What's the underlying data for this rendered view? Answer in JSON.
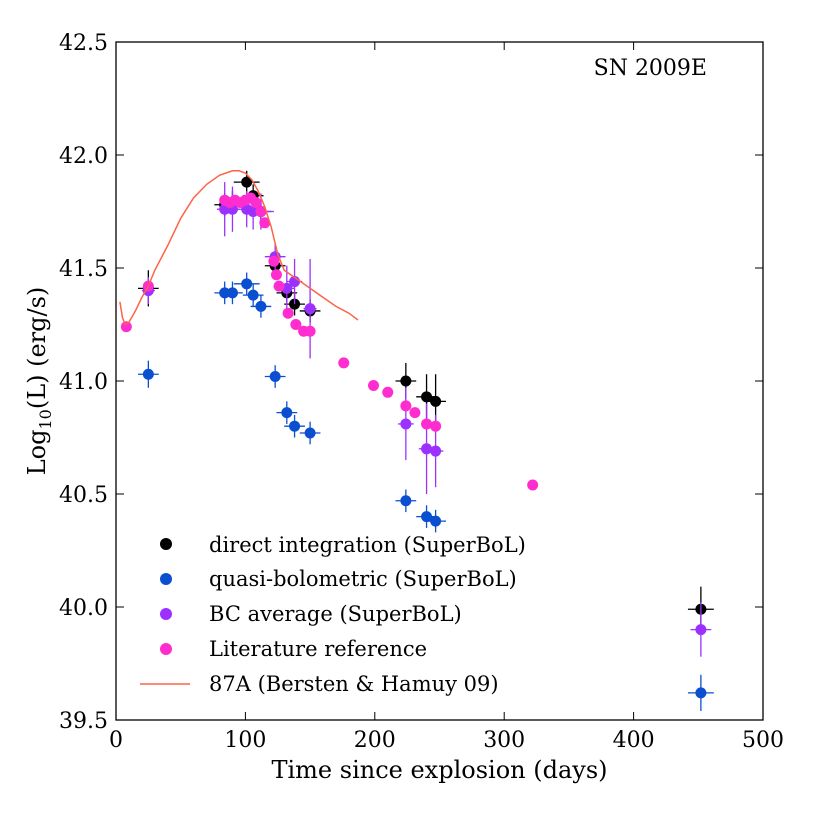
{
  "chart_data": {
    "type": "scatter",
    "title": "",
    "annotation": "SN 2009E",
    "xlabel": "Time since explosion (days)",
    "ylabel_main": "Log",
    "ylabel_sub": "10",
    "ylabel_rest": "(L) (erg/s)",
    "xlim": [
      0,
      500
    ],
    "ylim": [
      39.5,
      42.5
    ],
    "x_ticks": [
      0,
      100,
      200,
      300,
      400,
      500
    ],
    "y_ticks": [
      39.5,
      40.0,
      40.5,
      41.0,
      41.5,
      42.0,
      42.5
    ],
    "x_tick_labels": [
      "0",
      "100",
      "200",
      "300",
      "400",
      "500"
    ],
    "y_tick_labels": [
      "39.5",
      "40.0",
      "40.5",
      "41.0",
      "41.5",
      "42.0",
      "42.5"
    ],
    "grid": false,
    "legend_position": "bottom-left",
    "series": [
      {
        "name": "direct integration (SuperBoL)",
        "color": "#000000",
        "marker": "circle",
        "points": [
          {
            "x": 25,
            "y": 41.41,
            "xerr": 8,
            "yerr": 0.08
          },
          {
            "x": 84,
            "y": 41.78,
            "xerr": 8,
            "yerr": 0.05
          },
          {
            "x": 90,
            "y": 41.79,
            "xerr": 8,
            "yerr": 0.05
          },
          {
            "x": 101,
            "y": 41.88,
            "xerr": 10,
            "yerr": 0.05
          },
          {
            "x": 106,
            "y": 41.82,
            "xerr": 8,
            "yerr": 0.05
          },
          {
            "x": 112,
            "y": 41.75,
            "xerr": 8,
            "yerr": 0.05
          },
          {
            "x": 123,
            "y": 41.51,
            "xerr": 8,
            "yerr": 0.04
          },
          {
            "x": 132,
            "y": 41.39,
            "xerr": 8,
            "yerr": 0.04
          },
          {
            "x": 138,
            "y": 41.34,
            "xerr": 8,
            "yerr": 0.05
          },
          {
            "x": 150,
            "y": 41.31,
            "xerr": 8,
            "yerr": 0.05
          },
          {
            "x": 224,
            "y": 41.0,
            "xerr": 8,
            "yerr": 0.08
          },
          {
            "x": 240,
            "y": 40.93,
            "xerr": 8,
            "yerr": 0.1
          },
          {
            "x": 247,
            "y": 40.91,
            "xerr": 8,
            "yerr": 0.12
          },
          {
            "x": 452,
            "y": 39.99,
            "xerr": 10,
            "yerr": 0.1
          }
        ]
      },
      {
        "name": "quasi-bolometric (SuperBoL)",
        "color": "#0b4fd1",
        "marker": "circle",
        "points": [
          {
            "x": 25,
            "y": 41.03,
            "xerr": 8,
            "yerr": 0.06
          },
          {
            "x": 84,
            "y": 41.39,
            "xerr": 8,
            "yerr": 0.05
          },
          {
            "x": 90,
            "y": 41.39,
            "xerr": 8,
            "yerr": 0.05
          },
          {
            "x": 101,
            "y": 41.43,
            "xerr": 10,
            "yerr": 0.05
          },
          {
            "x": 106,
            "y": 41.38,
            "xerr": 8,
            "yerr": 0.05
          },
          {
            "x": 112,
            "y": 41.33,
            "xerr": 8,
            "yerr": 0.05
          },
          {
            "x": 123,
            "y": 41.02,
            "xerr": 8,
            "yerr": 0.05
          },
          {
            "x": 132,
            "y": 40.86,
            "xerr": 8,
            "yerr": 0.05
          },
          {
            "x": 138,
            "y": 40.8,
            "xerr": 8,
            "yerr": 0.05
          },
          {
            "x": 150,
            "y": 40.77,
            "xerr": 8,
            "yerr": 0.05
          },
          {
            "x": 224,
            "y": 40.47,
            "xerr": 8,
            "yerr": 0.05
          },
          {
            "x": 240,
            "y": 40.4,
            "xerr": 8,
            "yerr": 0.05
          },
          {
            "x": 247,
            "y": 40.38,
            "xerr": 8,
            "yerr": 0.05
          },
          {
            "x": 452,
            "y": 39.62,
            "xerr": 10,
            "yerr": 0.08
          }
        ]
      },
      {
        "name": "BC average (SuperBoL)",
        "color": "#9b30ff",
        "marker": "circle",
        "points": [
          {
            "x": 25,
            "y": 41.4,
            "xerr": 5,
            "yerr": 0.06
          },
          {
            "x": 84,
            "y": 41.76,
            "xerr": 6,
            "yerr": 0.12
          },
          {
            "x": 90,
            "y": 41.76,
            "xerr": 6,
            "yerr": 0.1
          },
          {
            "x": 101,
            "y": 41.76,
            "xerr": 8,
            "yerr": 0.08
          },
          {
            "x": 106,
            "y": 41.75,
            "xerr": 6,
            "yerr": 0.08
          },
          {
            "x": 112,
            "y": 41.75,
            "xerr": 10,
            "yerr": 0.08
          },
          {
            "x": 123,
            "y": 41.55,
            "xerr": 8,
            "yerr": 0.06
          },
          {
            "x": 132,
            "y": 41.41,
            "xerr": 6,
            "yerr": 0.1
          },
          {
            "x": 138,
            "y": 41.44,
            "xerr": 6,
            "yerr": 0.1
          },
          {
            "x": 150,
            "y": 41.32,
            "xerr": 5,
            "yerr": 0.22
          },
          {
            "x": 224,
            "y": 40.81,
            "xerr": 6,
            "yerr": 0.16
          },
          {
            "x": 240,
            "y": 40.7,
            "xerr": 6,
            "yerr": 0.2
          },
          {
            "x": 247,
            "y": 40.69,
            "xerr": 6,
            "yerr": 0.16
          },
          {
            "x": 452,
            "y": 39.9,
            "xerr": 8,
            "yerr": 0.12
          }
        ]
      },
      {
        "name": "Literature reference",
        "color": "#ff2ccf",
        "marker": "circle",
        "points": [
          {
            "x": 8,
            "y": 41.24
          },
          {
            "x": 25,
            "y": 41.42
          },
          {
            "x": 84,
            "y": 41.8
          },
          {
            "x": 88,
            "y": 41.79
          },
          {
            "x": 92,
            "y": 41.8
          },
          {
            "x": 96,
            "y": 41.79
          },
          {
            "x": 100,
            "y": 41.8
          },
          {
            "x": 104,
            "y": 41.81
          },
          {
            "x": 108,
            "y": 41.79
          },
          {
            "x": 112,
            "y": 41.75
          },
          {
            "x": 115,
            "y": 41.7
          },
          {
            "x": 122,
            "y": 41.53
          },
          {
            "x": 124,
            "y": 41.47
          },
          {
            "x": 126,
            "y": 41.42
          },
          {
            "x": 133,
            "y": 41.3
          },
          {
            "x": 139,
            "y": 41.25
          },
          {
            "x": 145,
            "y": 41.22
          },
          {
            "x": 150,
            "y": 41.22
          },
          {
            "x": 176,
            "y": 41.08
          },
          {
            "x": 199,
            "y": 40.98
          },
          {
            "x": 210,
            "y": 40.95
          },
          {
            "x": 224,
            "y": 40.89
          },
          {
            "x": 231,
            "y": 40.86
          },
          {
            "x": 240,
            "y": 40.81
          },
          {
            "x": 247,
            "y": 40.8
          },
          {
            "x": 322,
            "y": 40.54
          }
        ]
      },
      {
        "name": "87A (Bersten & Hamuy 09)",
        "color": "#ff6347",
        "marker": "line",
        "points": [
          {
            "x": 3,
            "y": 41.35
          },
          {
            "x": 5,
            "y": 41.28
          },
          {
            "x": 7,
            "y": 41.25
          },
          {
            "x": 10,
            "y": 41.26
          },
          {
            "x": 15,
            "y": 41.31
          },
          {
            "x": 20,
            "y": 41.37
          },
          {
            "x": 25,
            "y": 41.42
          },
          {
            "x": 30,
            "y": 41.49
          },
          {
            "x": 40,
            "y": 41.6
          },
          {
            "x": 50,
            "y": 41.72
          },
          {
            "x": 60,
            "y": 41.81
          },
          {
            "x": 70,
            "y": 41.87
          },
          {
            "x": 80,
            "y": 41.91
          },
          {
            "x": 90,
            "y": 41.93
          },
          {
            "x": 95,
            "y": 41.93
          },
          {
            "x": 100,
            "y": 41.92
          },
          {
            "x": 105,
            "y": 41.89
          },
          {
            "x": 110,
            "y": 41.84
          },
          {
            "x": 115,
            "y": 41.77
          },
          {
            "x": 120,
            "y": 41.68
          },
          {
            "x": 125,
            "y": 41.56
          },
          {
            "x": 130,
            "y": 41.49
          },
          {
            "x": 140,
            "y": 41.45
          },
          {
            "x": 150,
            "y": 41.41
          },
          {
            "x": 160,
            "y": 41.37
          },
          {
            "x": 170,
            "y": 41.33
          },
          {
            "x": 180,
            "y": 41.3
          },
          {
            "x": 187,
            "y": 41.27
          }
        ]
      }
    ]
  }
}
